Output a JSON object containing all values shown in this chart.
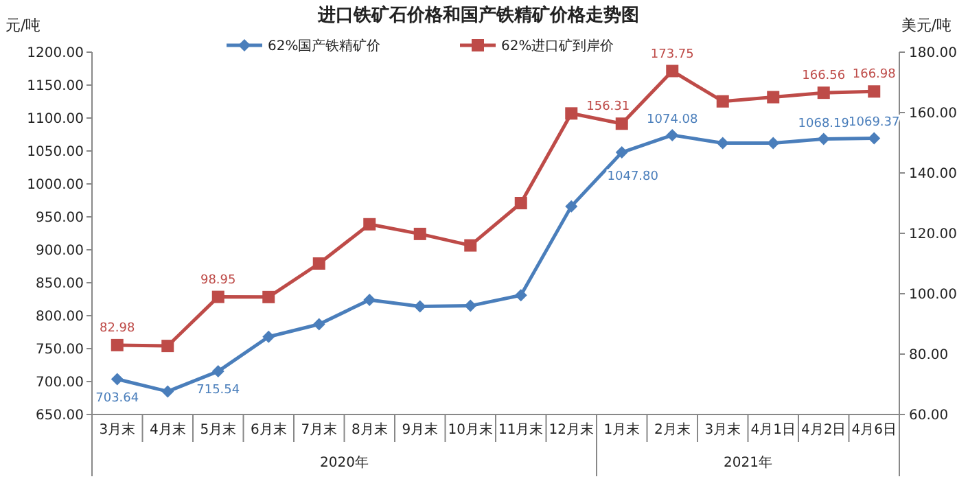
{
  "chart_data": {
    "type": "line",
    "title": "进口铁矿石价格和国产铁精矿价格走势图",
    "ylabel": "元/吨",
    "y2label": "美元/吨",
    "legend": "top",
    "grid": false,
    "categories": [
      "3月末",
      "4月末",
      "5月末",
      "6月末",
      "7月末",
      "8月末",
      "9月末",
      "10月末",
      "11月末",
      "12月末",
      "1月末",
      "2月末",
      "3月末",
      "4月1日",
      "4月2日",
      "4月6日"
    ],
    "series": [
      {
        "name": "62%国产铁精矿价",
        "color": "#4a7ebb",
        "marker": "diamond",
        "values": [
          703.64,
          685,
          715.54,
          768,
          787,
          824,
          814,
          815,
          831,
          966,
          1047.8,
          1074.08,
          1062,
          1062,
          1068.19,
          1069.37
        ],
        "value_labels": [
          "703.64",
          null,
          "715.54",
          null,
          null,
          null,
          null,
          null,
          null,
          null,
          "1047.80",
          "1074.08",
          null,
          null,
          "1068.19",
          "1069.37"
        ]
      },
      {
        "name": "62%进口矿到岸价",
        "color": "#be4b48",
        "marker": "square",
        "axis": "y2",
        "values": [
          82.98,
          82.7,
          98.95,
          98.9,
          110,
          123,
          119.8,
          116,
          130,
          159.7,
          156.31,
          173.75,
          163.7,
          165.1,
          166.56,
          166.98
        ],
        "value_labels": [
          "82.98",
          null,
          "98.95",
          null,
          null,
          null,
          null,
          null,
          null,
          null,
          "156.31",
          "173.75",
          null,
          null,
          "166.56",
          "166.98"
        ]
      }
    ],
    "ylim": [
      650,
      1200
    ],
    "yticks": [
      {
        "value": 650,
        "label": "650.00"
      },
      {
        "value": 700,
        "label": "700.00"
      },
      {
        "value": 750,
        "label": "750.00"
      },
      {
        "value": 800,
        "label": "800.00"
      },
      {
        "value": 850,
        "label": "850.00"
      },
      {
        "value": 900,
        "label": "900.00"
      },
      {
        "value": 950,
        "label": "950.00"
      },
      {
        "value": 1000,
        "label": "1000.00"
      },
      {
        "value": 1050,
        "label": "1050.00"
      },
      {
        "value": 1100,
        "label": "1100.00"
      },
      {
        "value": 1150,
        "label": "1150.00"
      },
      {
        "value": 1200,
        "label": "1200.00"
      }
    ],
    "y2lim": [
      60,
      180
    ],
    "y2ticks": [
      {
        "value": 60,
        "label": "60.00"
      },
      {
        "value": 80,
        "label": "80.00"
      },
      {
        "value": 100,
        "label": "100.00"
      },
      {
        "value": 120,
        "label": "120.00"
      },
      {
        "value": 140,
        "label": "140.00"
      },
      {
        "value": 160,
        "label": "160.00"
      },
      {
        "value": 180,
        "label": "180.00"
      }
    ],
    "annotations": [
      "2020年",
      "2021年"
    ]
  }
}
